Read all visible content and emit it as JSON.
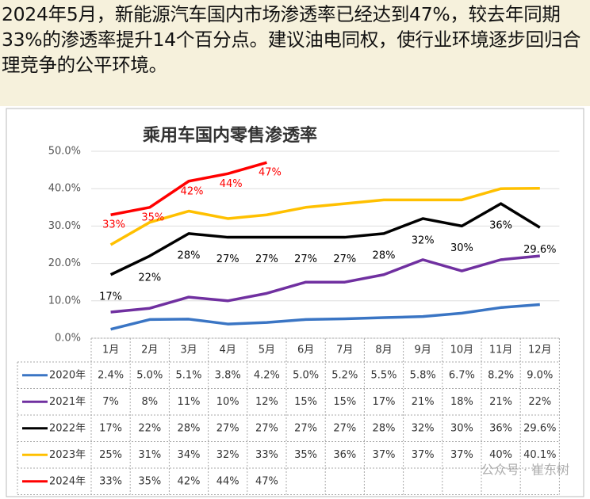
{
  "text": "2024年5月，新能源汽车国内市场渗透率已经达到47%，较去年同期33%的渗透率提升14个百分点。建议油电同权，使行业环境逐步回归合理竞争的公平环境。",
  "chart_data": {
    "type": "line",
    "title": "乘用车国内零售渗透率",
    "categories": [
      "1月",
      "2月",
      "3月",
      "4月",
      "5月",
      "6月",
      "7月",
      "8月",
      "9月",
      "10月",
      "11月",
      "12月"
    ],
    "ylim": [
      0,
      50
    ],
    "yticks": [
      {
        "value": 0,
        "label": "0.0%"
      },
      {
        "value": 10,
        "label": "10.0%"
      },
      {
        "value": 20,
        "label": "20.0%"
      },
      {
        "value": 30,
        "label": "30.0%"
      },
      {
        "value": 40,
        "label": "40.0%"
      },
      {
        "value": 50,
        "label": "50.0%"
      }
    ],
    "grid": true,
    "series": [
      {
        "name": "2020年",
        "color": "#3a75c4",
        "values": [
          2.4,
          5.0,
          5.1,
          3.8,
          4.2,
          5.0,
          5.2,
          5.5,
          5.8,
          6.7,
          8.2,
          9.0
        ],
        "value_labels": [
          "2.4%",
          "5.0%",
          "5.1%",
          "3.8%",
          "4.2%",
          "5.0%",
          "5.2%",
          "5.5%",
          "5.8%",
          "6.7%",
          "8.2%",
          "9.0%"
        ]
      },
      {
        "name": "2021年",
        "color": "#7030a0",
        "values": [
          7,
          8,
          11,
          10,
          12,
          15,
          15,
          17,
          21,
          18,
          21,
          22
        ],
        "value_labels": [
          "7%",
          "8%",
          "11%",
          "10%",
          "12%",
          "15%",
          "15%",
          "17%",
          "21%",
          "18%",
          "21%",
          "22%"
        ]
      },
      {
        "name": "2022年",
        "color": "#000000",
        "values": [
          17,
          22,
          28,
          27,
          27,
          27,
          27,
          28,
          32,
          30,
          36,
          29.6
        ],
        "value_labels": [
          "17%",
          "22%",
          "28%",
          "27%",
          "27%",
          "27%",
          "27%",
          "28%",
          "32%",
          "30%",
          "36%",
          "29.6%"
        ],
        "show_labels": true
      },
      {
        "name": "2023年",
        "color": "#ffc000",
        "values": [
          25,
          31,
          34,
          32,
          33,
          35,
          36,
          37,
          37,
          37,
          40,
          40.1
        ],
        "value_labels": [
          "25%",
          "31%",
          "34%",
          "32%",
          "33%",
          "35%",
          "36%",
          "37%",
          "37%",
          "37%",
          "40%",
          "40.1%"
        ]
      },
      {
        "name": "2024年",
        "color": "#ff0000",
        "values": [
          33,
          35,
          42,
          44,
          47,
          null,
          null,
          null,
          null,
          null,
          null,
          null
        ],
        "value_labels": [
          "33%",
          "35%",
          "42%",
          "44%",
          "47%",
          null,
          null,
          null,
          null,
          null,
          null,
          null
        ],
        "show_labels": true
      }
    ],
    "watermark": "公众号 · 崔东树"
  }
}
